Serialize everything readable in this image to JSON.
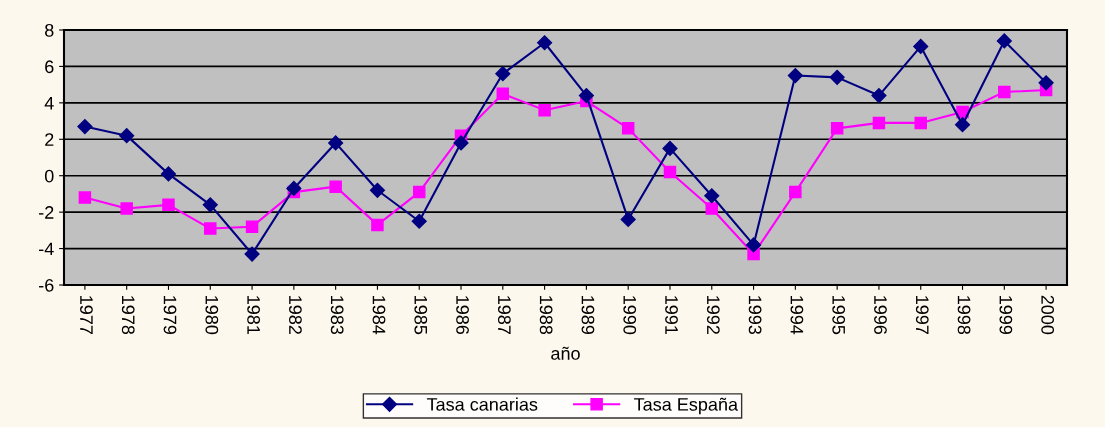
{
  "chart_data": {
    "type": "line",
    "xlabel": "año",
    "categories": [
      "1977",
      "1978",
      "1979",
      "1980",
      "1981",
      "1982",
      "1983",
      "1984",
      "1985",
      "1986",
      "1987",
      "1988",
      "1989",
      "1990",
      "1991",
      "1992",
      "1993",
      "1994",
      "1995",
      "1996",
      "1997",
      "1998",
      "1999",
      "2000"
    ],
    "series": [
      {
        "name": "Tasa canarias",
        "color": "#000080",
        "marker": "diamond",
        "values": [
          2.7,
          2.2,
          0.1,
          -1.6,
          -4.3,
          -0.7,
          1.8,
          -0.8,
          -2.5,
          1.8,
          5.6,
          7.3,
          4.4,
          -2.4,
          1.5,
          -1.1,
          -3.8,
          5.5,
          5.4,
          4.4,
          7.1,
          2.8,
          7.4,
          5.1
        ]
      },
      {
        "name": "Tasa España",
        "color": "#ff00ff",
        "marker": "square",
        "values": [
          -1.2,
          -1.8,
          -1.6,
          -2.9,
          -2.8,
          -0.9,
          -0.6,
          -2.7,
          -0.9,
          2.2,
          4.5,
          3.6,
          4.1,
          2.6,
          0.2,
          -1.8,
          -4.3,
          -0.9,
          2.6,
          2.9,
          2.9,
          3.5,
          4.6,
          4.7
        ]
      }
    ],
    "ylim": [
      -6,
      8
    ],
    "yticks": [
      -6,
      -4,
      -2,
      0,
      2,
      4,
      6,
      8
    ],
    "grid": "y",
    "legend": "bottom"
  }
}
